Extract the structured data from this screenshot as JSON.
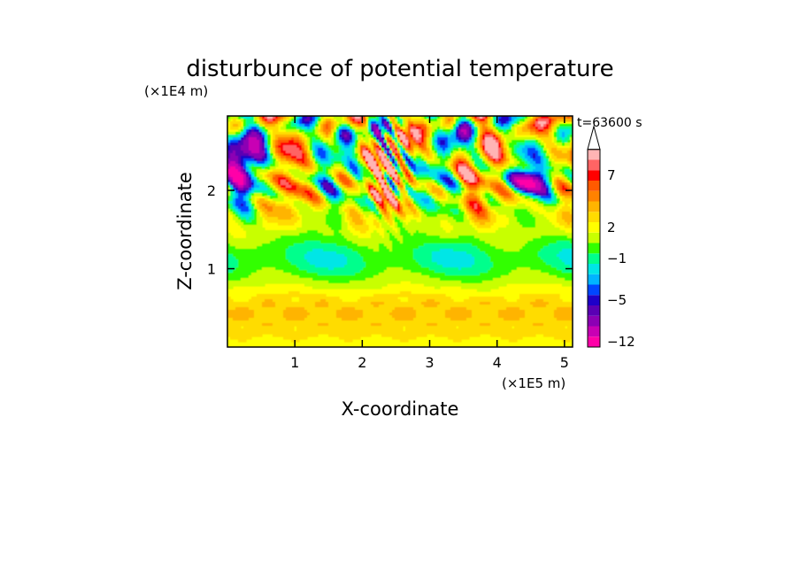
{
  "chart_data": {
    "type": "heatmap",
    "title": "disturbunce of potential temperature",
    "xlabel": "X-coordinate",
    "ylabel": "Z-coordinate",
    "x_scale_note": "(×1E5 m)",
    "y_scale_note": "(×1E4 m)",
    "time_label": "t=63600 s",
    "xlim": [
      0,
      5.12
    ],
    "ylim": [
      0,
      2.95
    ],
    "x_ticks": [
      {
        "value": 1,
        "label": "1"
      },
      {
        "value": 2,
        "label": "2"
      },
      {
        "value": 3,
        "label": "3"
      },
      {
        "value": 4,
        "label": "4"
      },
      {
        "value": 5,
        "label": "5"
      }
    ],
    "y_ticks": [
      {
        "value": 1,
        "label": "1"
      },
      {
        "value": 2,
        "label": "2"
      }
    ],
    "colorbar": {
      "levels": [
        -12,
        -10,
        -8,
        -6,
        -5,
        -4,
        -3,
        -2,
        -1,
        0,
        1,
        2,
        3,
        4,
        5,
        6,
        7,
        8,
        9
      ],
      "colors": [
        "#ff00a8",
        "#c800b4",
        "#8c00b4",
        "#5a00b4",
        "#1e00c8",
        "#0046ff",
        "#00b4ff",
        "#00e6e6",
        "#00ff8c",
        "#32ff00",
        "#c8ff00",
        "#ffff00",
        "#ffdc00",
        "#ffb400",
        "#ff8200",
        "#ff5a00",
        "#ff0000",
        "#ff6464",
        "#ffb4b4"
      ],
      "labels": [
        {
          "value": -12,
          "label": "−12"
        },
        {
          "value": -5,
          "label": "−5"
        },
        {
          "value": -1,
          "label": "−1"
        },
        {
          "value": 2,
          "label": "2"
        },
        {
          "value": 7,
          "label": "7"
        }
      ],
      "extend": "max"
    },
    "grid": false,
    "legend": "colorbar-right"
  }
}
